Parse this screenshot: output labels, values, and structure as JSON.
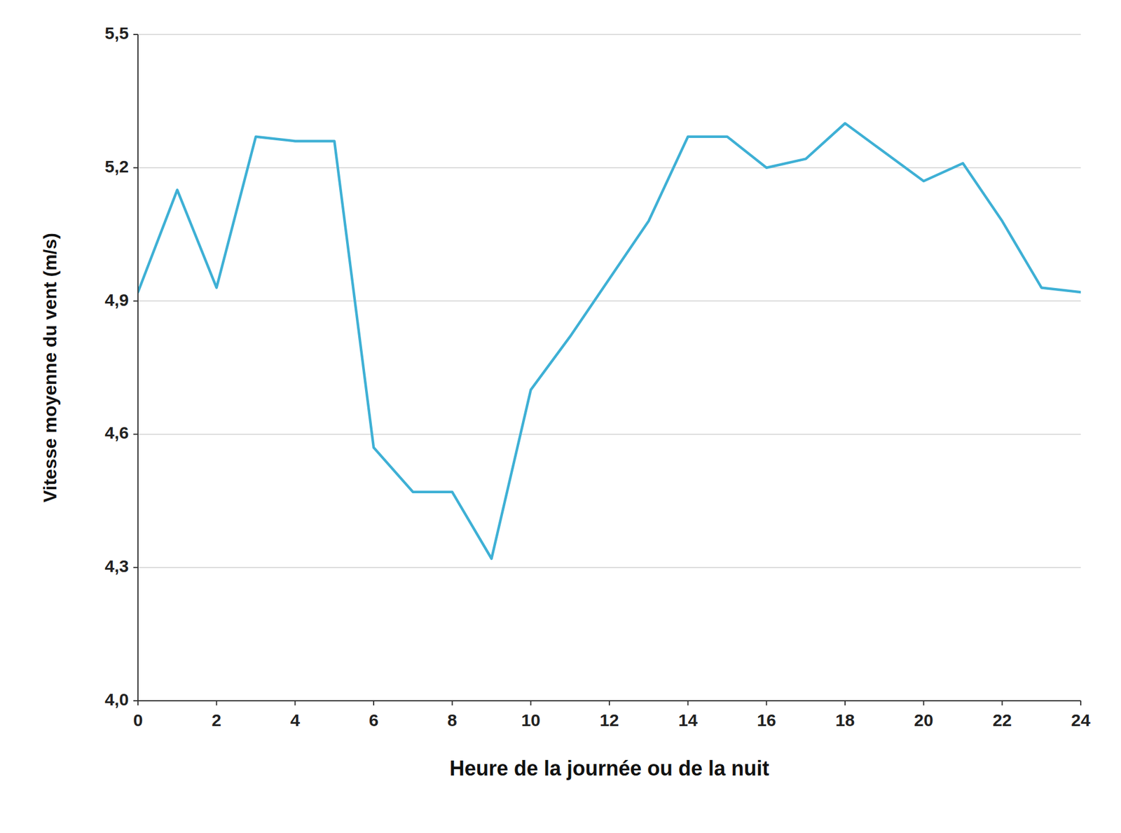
{
  "chart_data": {
    "type": "line",
    "xlabel": "Heure de la journée ou de la nuit",
    "ylabel": "Vitesse moyenne du vent (m/s)",
    "x": [
      0,
      1,
      2,
      3,
      4,
      5,
      6,
      7,
      8,
      9,
      10,
      11,
      12,
      13,
      14,
      15,
      16,
      17,
      18,
      20,
      21,
      22,
      23,
      24
    ],
    "values": [
      4.92,
      5.15,
      4.93,
      5.27,
      5.26,
      5.26,
      4.57,
      4.47,
      4.47,
      4.32,
      4.7,
      4.82,
      4.95,
      5.08,
      5.27,
      5.27,
      5.2,
      5.22,
      5.3,
      5.17,
      5.21,
      5.08,
      4.93,
      4.92
    ],
    "color": "#3eb0d5",
    "xlim": [
      0,
      24
    ],
    "ylim": [
      4.0,
      5.5
    ],
    "xticks": [
      0,
      2,
      4,
      6,
      8,
      10,
      12,
      14,
      16,
      18,
      20,
      22,
      24
    ],
    "yticks": [
      {
        "value": 4.0,
        "label": "4,0"
      },
      {
        "value": 4.3,
        "label": "4,3"
      },
      {
        "value": 4.6,
        "label": "4,6"
      },
      {
        "value": 4.9,
        "label": "4,9"
      },
      {
        "value": 5.2,
        "label": "5,2"
      },
      {
        "value": 5.5,
        "label": "5,5"
      }
    ],
    "grid": "y"
  }
}
